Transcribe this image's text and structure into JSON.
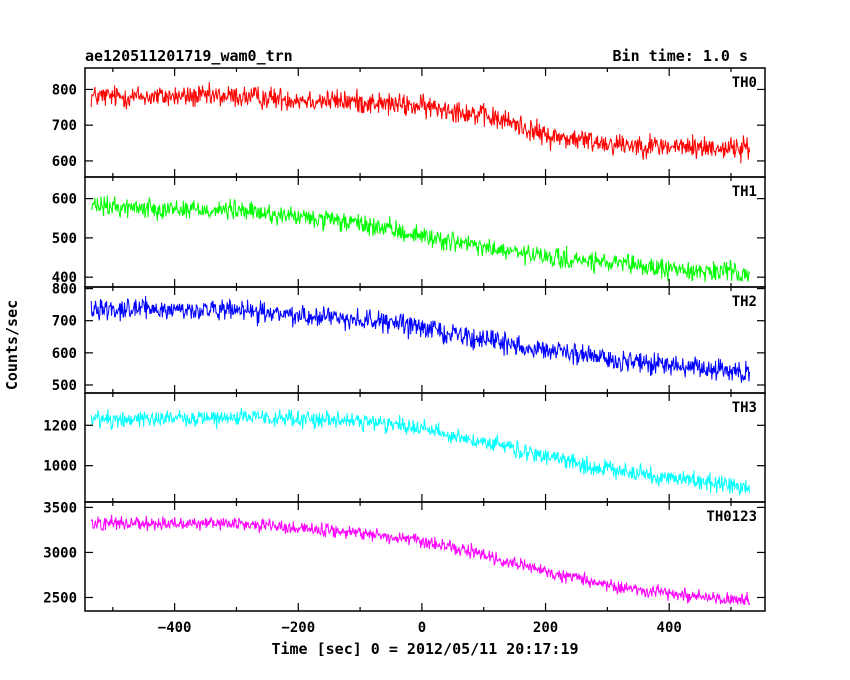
{
  "chart_data": {
    "type": "line",
    "title_left": "ae120511201719_wam0_trn",
    "title_right": "Bin time: 1.0 s",
    "xlabel": "Time [sec] 0 = 2012/05/11 20:17:19",
    "ylabel": "Counts/sec",
    "xlim": [
      -545,
      555
    ],
    "x_range": [
      -535,
      530
    ],
    "x_ticks": [
      -400,
      -200,
      0,
      200,
      400
    ],
    "x_tick_labels": [
      "−400",
      "−200",
      "0",
      "200",
      "400"
    ],
    "grid": false,
    "panels": [
      {
        "name": "TH0",
        "color": "#ff0000",
        "ylim": [
          555,
          860
        ],
        "y_ticks": [
          600,
          700,
          800
        ],
        "y_tick_labels": [
          "600",
          "700",
          "800"
        ],
        "trend_x": [
          -535,
          -300,
          -100,
          50,
          150,
          200,
          300,
          400,
          530
        ],
        "trend_y": [
          780,
          780,
          765,
          745,
          705,
          670,
          650,
          640,
          635
        ],
        "noise": 28
      },
      {
        "name": "TH1",
        "color": "#00ff00",
        "ylim": [
          375,
          655
        ],
        "y_ticks": [
          400,
          500,
          600
        ],
        "y_tick_labels": [
          "400",
          "500",
          "600"
        ],
        "trend_x": [
          -535,
          -300,
          -100,
          0,
          100,
          200,
          300,
          400,
          530
        ],
        "trend_y": [
          580,
          570,
          535,
          505,
          475,
          450,
          435,
          420,
          410
        ],
        "noise": 22
      },
      {
        "name": "TH2",
        "color": "#0000ff",
        "ylim": [
          475,
          805
        ],
        "y_ticks": [
          500,
          600,
          700,
          800
        ],
        "y_tick_labels": [
          "500",
          "600",
          "700",
          "800"
        ],
        "trend_x": [
          -535,
          -300,
          -100,
          0,
          100,
          200,
          300,
          400,
          530
        ],
        "trend_y": [
          740,
          730,
          705,
          680,
          640,
          610,
          580,
          560,
          535
        ],
        "noise": 28
      },
      {
        "name": "TH3",
        "color": "#00ffff",
        "ylim": [
          820,
          1360
        ],
        "y_ticks": [
          1000,
          1200
        ],
        "y_tick_labels": [
          "1000",
          "1200"
        ],
        "trend_x": [
          -535,
          -300,
          -100,
          0,
          50,
          150,
          250,
          350,
          450,
          530
        ],
        "trend_y": [
          1230,
          1240,
          1220,
          1190,
          1150,
          1080,
          1010,
          960,
          920,
          890
        ],
        "noise": 38
      },
      {
        "name": "TH0123",
        "color": "#ff00ff",
        "ylim": [
          2350,
          3560
        ],
        "y_ticks": [
          2500,
          3000,
          3500
        ],
        "y_tick_labels": [
          "2500",
          "3000",
          "3500"
        ],
        "trend_x": [
          -535,
          -300,
          -100,
          0,
          100,
          200,
          300,
          400,
          530
        ],
        "trend_y": [
          3330,
          3320,
          3220,
          3120,
          2970,
          2780,
          2640,
          2540,
          2460
        ],
        "noise": 65
      }
    ]
  }
}
